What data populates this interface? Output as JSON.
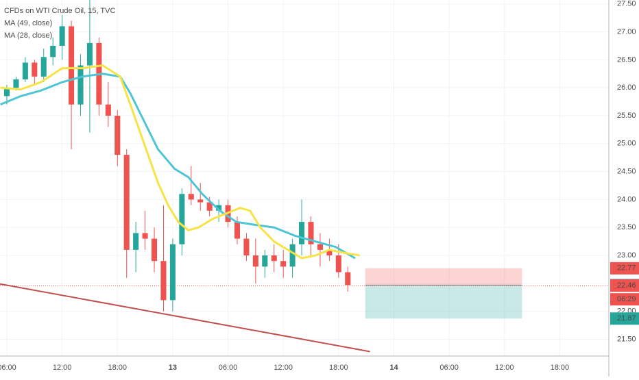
{
  "chart_data": {
    "type": "candlestick",
    "title": "CFDs on WTI Crude Oil, 15, TVC",
    "candles": {
      "x": [
        6,
        7,
        8,
        9,
        10,
        11,
        12,
        13,
        14,
        15,
        16,
        17,
        18,
        19,
        20,
        21,
        22,
        23,
        24,
        25,
        26,
        27,
        28,
        29,
        30,
        31,
        32,
        33,
        34,
        35,
        36,
        37,
        38,
        39,
        40,
        41,
        42,
        43
      ],
      "open": [
        25.85,
        26.0,
        26.15,
        26.45,
        26.2,
        26.55,
        26.75,
        27.1,
        25.7,
        26.4,
        26.8,
        25.7,
        25.5,
        24.8,
        23.1,
        23.4,
        23.3,
        22.9,
        22.2,
        23.2,
        24.1,
        24.0,
        23.95,
        23.8,
        23.9,
        23.6,
        23.3,
        23.0,
        22.8,
        23.0,
        22.9,
        22.8,
        23.2,
        23.6,
        23.2,
        23.1,
        23.0,
        22.7
      ],
      "high": [
        26.05,
        26.2,
        26.55,
        26.5,
        26.7,
        26.9,
        27.3,
        27.2,
        26.6,
        27.6,
        26.9,
        26.1,
        25.6,
        24.9,
        23.6,
        23.8,
        23.5,
        23.9,
        23.3,
        24.2,
        24.6,
        24.3,
        24.05,
        24.0,
        24.0,
        23.7,
        23.4,
        23.3,
        23.1,
        23.2,
        23.1,
        23.3,
        24.0,
        23.7,
        23.4,
        23.3,
        23.2,
        22.8
      ],
      "low": [
        25.7,
        25.95,
        26.1,
        26.05,
        26.1,
        26.4,
        26.5,
        24.9,
        25.5,
        25.2,
        25.5,
        25.3,
        24.6,
        22.6,
        22.7,
        23.1,
        22.7,
        22.0,
        22.0,
        23.0,
        23.9,
        23.8,
        23.7,
        23.6,
        23.5,
        23.2,
        22.9,
        22.5,
        22.6,
        22.7,
        22.6,
        22.6,
        23.0,
        23.0,
        22.8,
        22.9,
        22.6,
        22.35
      ],
      "close": [
        26.0,
        26.15,
        26.45,
        26.2,
        26.55,
        26.75,
        27.1,
        25.7,
        26.4,
        26.8,
        25.7,
        25.5,
        24.8,
        23.1,
        23.4,
        23.3,
        22.9,
        22.2,
        23.2,
        24.1,
        24.0,
        23.95,
        23.8,
        23.9,
        23.6,
        23.3,
        23.0,
        22.8,
        23.0,
        22.9,
        22.8,
        23.2,
        23.6,
        23.2,
        23.1,
        23.0,
        22.7,
        22.47
      ],
      "up_color": "#26a69a",
      "down_color": "#ef5350"
    },
    "series": [
      {
        "name": "MA (49, close)",
        "color": "#4ec5d4",
        "x": [
          5.3,
          7.5,
          9.7,
          12.0,
          14.2,
          16.4,
          18.3,
          19.4,
          20.9,
          22.4,
          24.2,
          25.7,
          27.2,
          29.1,
          30.9,
          32.8,
          35.0,
          37.3,
          39.5,
          41.7,
          43.8
        ],
        "values": [
          25.7,
          25.85,
          25.95,
          26.1,
          26.2,
          26.25,
          26.2,
          25.9,
          25.4,
          24.9,
          24.55,
          24.4,
          24.1,
          23.8,
          23.6,
          23.55,
          23.5,
          23.35,
          23.25,
          23.15,
          22.95
        ]
      },
      {
        "name": "MA (28, close)",
        "color": "#f7e345",
        "x": [
          5.3,
          7.5,
          9.7,
          12.0,
          14.2,
          16.4,
          18.3,
          19.4,
          20.9,
          22.4,
          23.5,
          24.6,
          25.7,
          26.8,
          28.3,
          29.8,
          31.3,
          32.4,
          33.5,
          35.0,
          36.5,
          38.0,
          39.5,
          41.0,
          42.5,
          44.3
        ],
        "values": [
          26.0,
          25.97,
          26.1,
          26.35,
          26.35,
          26.4,
          26.2,
          25.7,
          25.0,
          24.3,
          23.9,
          23.6,
          23.45,
          23.5,
          23.65,
          23.75,
          23.85,
          23.8,
          23.5,
          23.25,
          23.1,
          22.95,
          23.0,
          23.1,
          23.05,
          23.0
        ]
      }
    ],
    "trend_line": {
      "color": "#c0504d",
      "x": [
        5.26,
        45.4
      ],
      "values": [
        22.49,
        21.28
      ]
    },
    "position": {
      "x": [
        44.9,
        61.9
      ],
      "target": 22.77,
      "entry": 22.47,
      "stop": 21.87
    },
    "last_price": 22.46,
    "countdown": "06:29",
    "price_labels": [
      {
        "value": 22.77,
        "label": "22.77",
        "color": "#ef5350"
      },
      {
        "value": 22.47,
        "label": "22.47",
        "color": "#787b86"
      },
      {
        "value": 22.46,
        "label": "22.46",
        "color": "#ef5350"
      },
      {
        "value": 21.87,
        "label": "21.87",
        "color": "#26a69a"
      }
    ],
    "xlim": [
      5.256,
      71.33
    ],
    "ylim": [
      21.2,
      27.57
    ],
    "xticks": [
      {
        "value": 6,
        "label": "06:00"
      },
      {
        "value": 12,
        "label": "12:00"
      },
      {
        "value": 18,
        "label": "18:00"
      },
      {
        "value": 24,
        "label": "13"
      },
      {
        "value": 30,
        "label": "06:00"
      },
      {
        "value": 36,
        "label": "12:00"
      },
      {
        "value": 42,
        "label": "18:00"
      },
      {
        "value": 48,
        "label": "14"
      },
      {
        "value": 54,
        "label": "06:00"
      },
      {
        "value": 60,
        "label": "12:00"
      },
      {
        "value": 66,
        "label": "18:00"
      }
    ],
    "yticks": [
      {
        "value": 21.5,
        "label": "21.50"
      },
      {
        "value": 22,
        "label": "22.00"
      },
      {
        "value": 22.5,
        "label": "22.50"
      },
      {
        "value": 23,
        "label": "23.00"
      },
      {
        "value": 23.5,
        "label": "23.50"
      },
      {
        "value": 24,
        "label": "24.00"
      },
      {
        "value": 24.5,
        "label": "24.50"
      },
      {
        "value": 25,
        "label": "25.00"
      },
      {
        "value": 25.5,
        "label": "25.50"
      },
      {
        "value": 26,
        "label": "26.00"
      },
      {
        "value": 26.5,
        "label": "26.50"
      },
      {
        "value": 27,
        "label": "27.00"
      },
      {
        "value": 27.5,
        "label": "27.50"
      }
    ],
    "grid": true
  }
}
